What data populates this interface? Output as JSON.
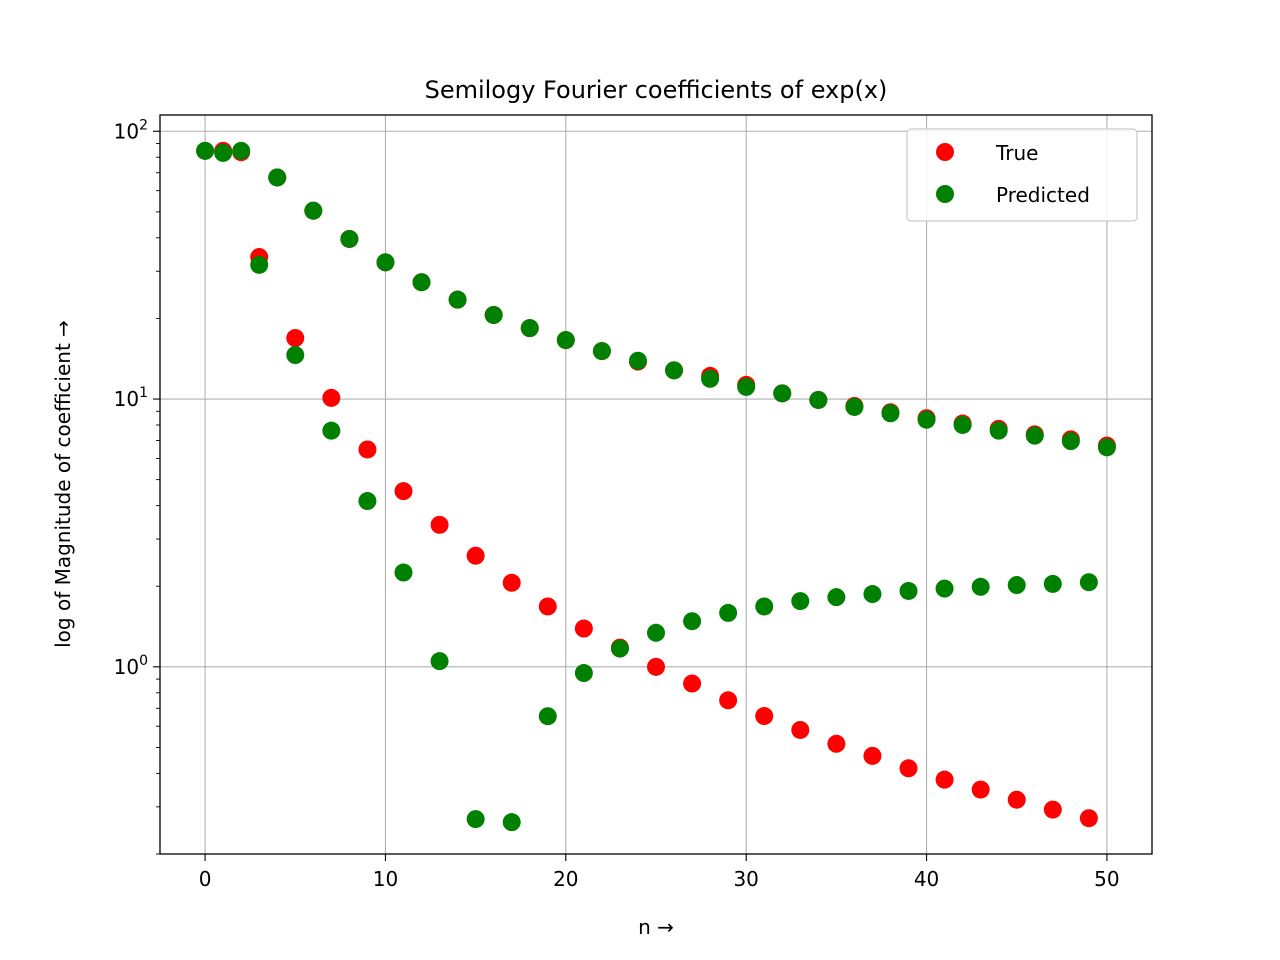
{
  "chart_data": {
    "type": "scatter",
    "title": "Semilogy Fourier coefficients of exp(x)",
    "xlabel": "n →",
    "ylabel": "log of Magnitude of coefficient  →",
    "yscale": "log",
    "xlim": [
      -2.5,
      52.5
    ],
    "ylim": [
      0.2,
      115
    ],
    "xticks": [
      0,
      10,
      20,
      30,
      40,
      50
    ],
    "yticks": [
      {
        "value": 1,
        "base": "10",
        "exp": "0"
      },
      {
        "value": 10,
        "base": "10",
        "exp": "1"
      },
      {
        "value": 100,
        "base": "10",
        "exp": "2"
      }
    ],
    "grid": true,
    "legend": "top-right",
    "colors": {
      "true": "#ff0000",
      "predicted": "#008000"
    },
    "series": [
      {
        "name": "True",
        "color": "#ff0000",
        "points": [
          [
            0,
            84.5
          ],
          [
            1,
            84.5
          ],
          [
            2,
            83.5
          ],
          [
            3,
            33.9
          ],
          [
            4,
            67.2
          ],
          [
            5,
            16.9
          ],
          [
            6,
            50.5
          ],
          [
            7,
            10.1
          ],
          [
            8,
            39.6
          ],
          [
            9,
            6.48
          ],
          [
            10,
            32.4
          ],
          [
            11,
            4.53
          ],
          [
            12,
            27.3
          ],
          [
            13,
            3.39
          ],
          [
            14,
            23.5
          ],
          [
            15,
            2.6
          ],
          [
            16,
            20.6
          ],
          [
            17,
            2.06
          ],
          [
            18,
            18.4
          ],
          [
            19,
            1.68
          ],
          [
            20,
            16.6
          ],
          [
            21,
            1.39
          ],
          [
            22,
            15.1
          ],
          [
            23,
            1.18
          ],
          [
            24,
            13.8
          ],
          [
            25,
            1.0
          ],
          [
            26,
            12.8
          ],
          [
            27,
            0.866
          ],
          [
            28,
            12.2
          ],
          [
            29,
            0.75
          ],
          [
            30,
            11.3
          ],
          [
            31,
            0.655
          ],
          [
            32,
            10.5
          ],
          [
            33,
            0.581
          ],
          [
            34,
            9.92
          ],
          [
            35,
            0.516
          ],
          [
            36,
            9.42
          ],
          [
            37,
            0.465
          ],
          [
            38,
            8.93
          ],
          [
            39,
            0.418
          ],
          [
            40,
            8.48
          ],
          [
            41,
            0.379
          ],
          [
            42,
            8.1
          ],
          [
            43,
            0.348
          ],
          [
            44,
            7.74
          ],
          [
            45,
            0.319
          ],
          [
            46,
            7.38
          ],
          [
            47,
            0.293
          ],
          [
            48,
            7.07
          ],
          [
            49,
            0.272
          ],
          [
            50,
            6.7
          ]
        ]
      },
      {
        "name": "Predicted",
        "color": "#008000",
        "points": [
          [
            0,
            84.5
          ],
          [
            1,
            83.0
          ],
          [
            2,
            84.5
          ],
          [
            3,
            31.7
          ],
          [
            4,
            67.2
          ],
          [
            5,
            14.6
          ],
          [
            6,
            50.5
          ],
          [
            7,
            7.62
          ],
          [
            8,
            39.6
          ],
          [
            9,
            4.16
          ],
          [
            10,
            32.4
          ],
          [
            11,
            2.25
          ],
          [
            12,
            27.3
          ],
          [
            13,
            1.05
          ],
          [
            14,
            23.5
          ],
          [
            15,
            0.27
          ],
          [
            16,
            20.6
          ],
          [
            17,
            0.263
          ],
          [
            18,
            18.4
          ],
          [
            19,
            0.654
          ],
          [
            20,
            16.6
          ],
          [
            21,
            0.948
          ],
          [
            22,
            15.1
          ],
          [
            23,
            1.17
          ],
          [
            24,
            13.9
          ],
          [
            25,
            1.34
          ],
          [
            26,
            12.8
          ],
          [
            27,
            1.48
          ],
          [
            28,
            11.9
          ],
          [
            29,
            1.59
          ],
          [
            30,
            11.1
          ],
          [
            31,
            1.68
          ],
          [
            32,
            10.5
          ],
          [
            33,
            1.76
          ],
          [
            34,
            9.92
          ],
          [
            35,
            1.82
          ],
          [
            36,
            9.34
          ],
          [
            37,
            1.87
          ],
          [
            38,
            8.85
          ],
          [
            39,
            1.92
          ],
          [
            40,
            8.37
          ],
          [
            41,
            1.96
          ],
          [
            42,
            8.0
          ],
          [
            43,
            1.99
          ],
          [
            44,
            7.62
          ],
          [
            45,
            2.02
          ],
          [
            46,
            7.3
          ],
          [
            47,
            2.04
          ],
          [
            48,
            6.96
          ],
          [
            49,
            2.07
          ],
          [
            50,
            6.6
          ]
        ]
      }
    ]
  }
}
